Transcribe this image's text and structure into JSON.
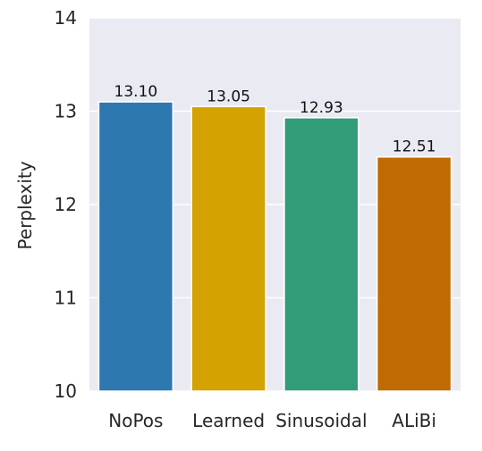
{
  "chart_data": {
    "type": "bar",
    "title": "",
    "xlabel": "",
    "ylabel": "Perplexity",
    "categories": [
      "NoPos",
      "Learned",
      "Sinusoidal",
      "ALiBi"
    ],
    "values": [
      13.1,
      13.05,
      12.93,
      12.51
    ],
    "value_labels": [
      "13.10",
      "13.05",
      "12.93",
      "12.51"
    ],
    "colors": [
      "#2e78b0",
      "#d4a201",
      "#329b78",
      "#c06a04"
    ],
    "ylim": [
      10,
      14
    ],
    "yticks": [
      "10",
      "11",
      "12",
      "13",
      "14"
    ],
    "grid": true,
    "background": "#eaeaf2",
    "grid_color": "#ffffff",
    "legend": "none"
  }
}
